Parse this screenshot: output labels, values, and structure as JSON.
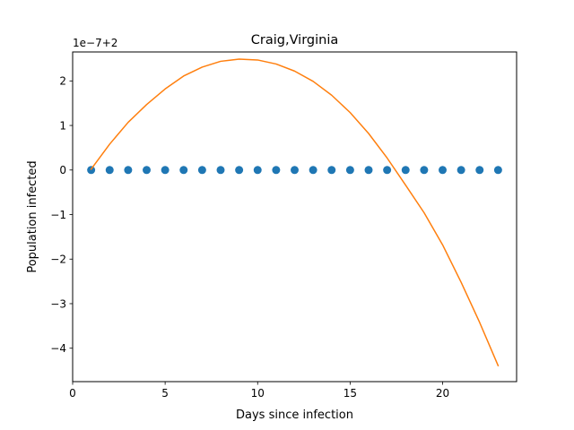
{
  "chart_data": {
    "type": "scatter+line",
    "title": "Craig,Virginia",
    "xlabel": "Days since infection",
    "ylabel": "Population infected",
    "offset_text": "1e−7+2",
    "xlim": [
      0,
      24
    ],
    "ylim": [
      -4.75,
      2.65
    ],
    "x_ticks": [
      0,
      5,
      10,
      15,
      20
    ],
    "x_tick_labels": [
      "0",
      "5",
      "10",
      "15",
      "20"
    ],
    "y_ticks": [
      -4,
      -3,
      -2,
      -1,
      0,
      1,
      2
    ],
    "y_tick_labels": [
      "−4",
      "−3",
      "−2",
      "−1",
      "0",
      "1",
      "2"
    ],
    "grid": false,
    "series": [
      {
        "kind": "scatter",
        "color": "#1f77b4",
        "x": [
          1,
          2,
          3,
          4,
          5,
          6,
          7,
          8,
          9,
          10,
          11,
          12,
          13,
          14,
          15,
          16,
          17,
          18,
          19,
          20,
          21,
          22,
          23
        ],
        "y": [
          0,
          0,
          0,
          0,
          0,
          0,
          0,
          0,
          0,
          0,
          0,
          0,
          0,
          0,
          0,
          0,
          0,
          0,
          0,
          0,
          0,
          0,
          0
        ]
      },
      {
        "kind": "line",
        "color": "#ff7f0e",
        "x": [
          1,
          2,
          3,
          4,
          5,
          6,
          7,
          8,
          9,
          10,
          11,
          12,
          13,
          14,
          15,
          16,
          17,
          18,
          19,
          20,
          21,
          22,
          23
        ],
        "y": [
          0.02,
          0.58,
          1.07,
          1.47,
          1.82,
          2.11,
          2.31,
          2.44,
          2.49,
          2.47,
          2.38,
          2.22,
          1.99,
          1.68,
          1.29,
          0.82,
          0.27,
          -0.34,
          -0.96,
          -1.68,
          -2.52,
          -3.42,
          -4.39
        ]
      }
    ]
  }
}
